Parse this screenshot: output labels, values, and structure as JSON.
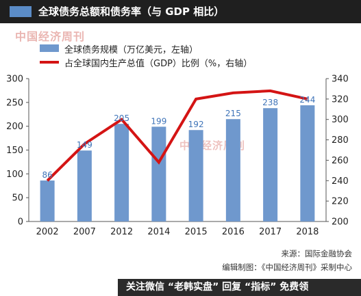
{
  "header": {
    "title": "全球债务总额和债务率（与 GDP 相比）"
  },
  "watermarks": {
    "top": "中国经济周刊",
    "middle": "中国经济周刊"
  },
  "legend": {
    "bar_label": "全球债务规模（万亿美元，左轴）",
    "line_label": "占全球国内生产总值（GDP）比例（%，右轴）"
  },
  "footer": {
    "source": "来源：国际金融协会",
    "editor": "编辑制图：《中国经济周刊》采制中心",
    "promo": "关注微信 “老韩实盘” 回复 “指标” 免费领"
  },
  "colors": {
    "bar": "#6f98cd",
    "line": "#d41414",
    "bar_label": "#3f74b8"
  },
  "chart_data": {
    "type": "bar",
    "categories": [
      "2002",
      "2007",
      "2012",
      "2014",
      "2015",
      "2016",
      "2017",
      "2018"
    ],
    "series": [
      {
        "name": "全球债务规模（万亿美元，左轴）",
        "type": "bar",
        "axis": "left",
        "values": [
          86,
          149,
          205,
          199,
          192,
          215,
          238,
          244
        ]
      },
      {
        "name": "占全球国内生产总值（GDP）比例（%，右轴）",
        "type": "line",
        "axis": "right",
        "values": [
          240,
          276,
          300,
          258,
          320,
          326,
          328,
          320
        ]
      }
    ],
    "left_axis": {
      "ylim": [
        0,
        300
      ],
      "ticks": [
        0,
        50,
        100,
        150,
        200,
        250,
        300
      ]
    },
    "right_axis": {
      "ylim": [
        200,
        340
      ],
      "ticks": [
        200,
        220,
        240,
        260,
        280,
        300,
        320,
        340
      ]
    },
    "grid": false,
    "legend_position": "top-left"
  }
}
